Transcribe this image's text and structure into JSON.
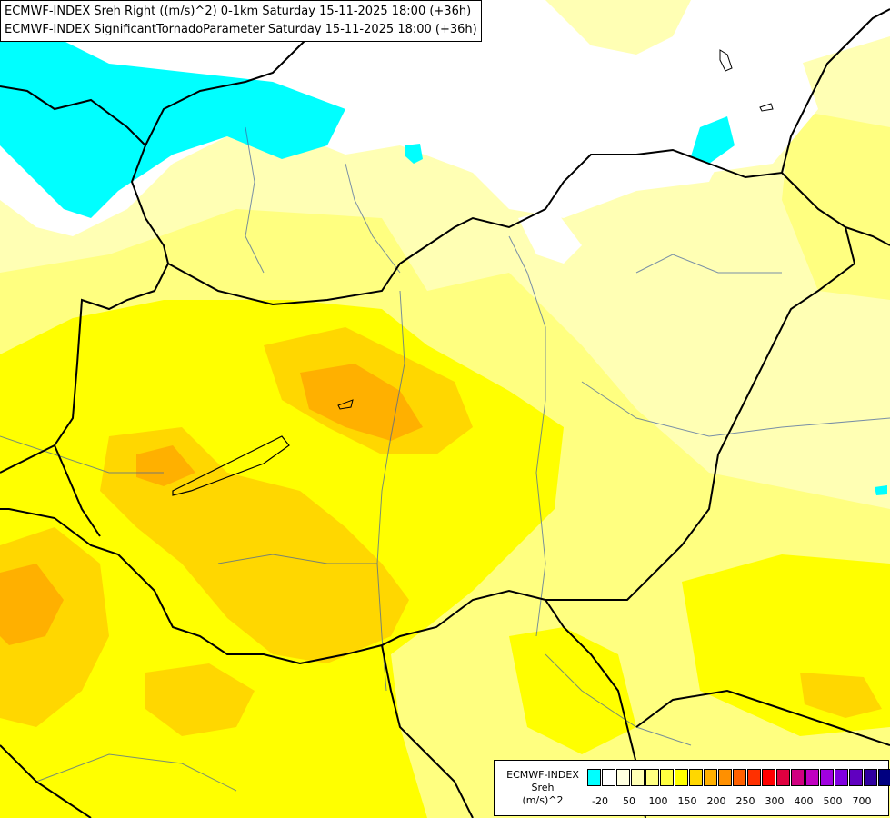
{
  "header": {
    "line1": "ECMWF-INDEX Sreh Right ((m/s)^2) 0-1km Saturday 15-11-2025 18:00 (+36h)",
    "line2": "ECMWF-INDEX SignificantTornadoParameter Saturday 15-11-2025 18:00 (+36h)"
  },
  "legend": {
    "label_line1": "ECMWF-INDEX",
    "label_line2": "Sreh",
    "label_line3": "(m/s)^2",
    "colors": [
      "#00ffff",
      "#ffffff",
      "#ffffe0",
      "#ffffb4",
      "#ffff80",
      "#ffff40",
      "#ffff00",
      "#ffd700",
      "#ffb000",
      "#ff9000",
      "#ff6000",
      "#ff3000",
      "#ff0000",
      "#e00040",
      "#d00080",
      "#c000c0",
      "#a000e0",
      "#8000e0",
      "#6000c0",
      "#3000a0",
      "#000080"
    ],
    "ticks": [
      "-20",
      "50",
      "100",
      "150",
      "200",
      "250",
      "300",
      "400",
      "500",
      "700"
    ]
  },
  "map": {
    "fill_colors": {
      "cyan": "#00ffff",
      "white": "#ffffff",
      "pale": "#ffffb4",
      "light": "#ffff80",
      "yellow": "#ffff00",
      "gold": "#ffd700",
      "orange": "#ffb000"
    },
    "border_color": "#000000",
    "river_color": "#4060a0"
  }
}
